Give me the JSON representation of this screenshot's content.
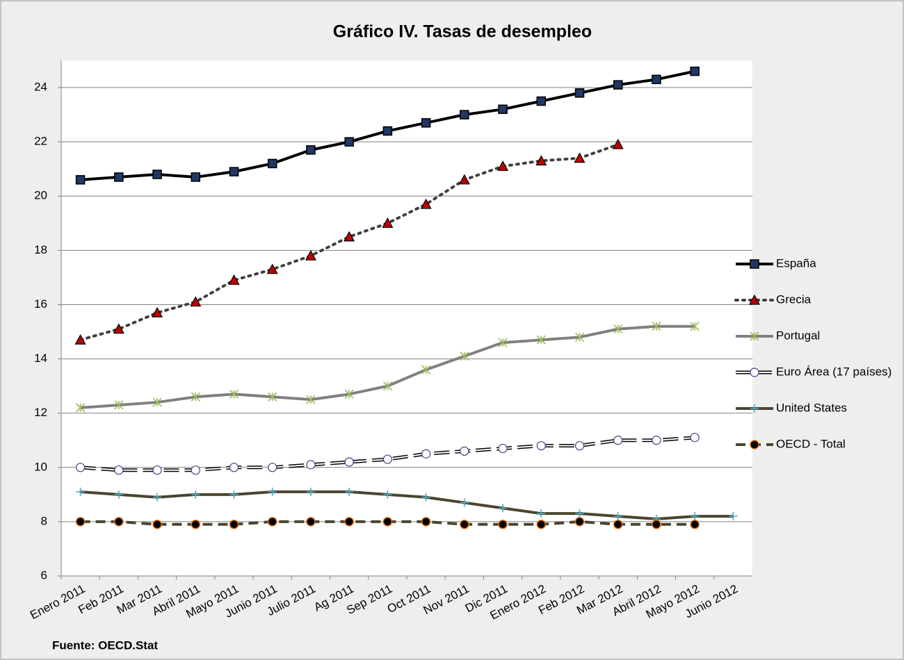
{
  "chart_data": {
    "type": "line",
    "title": "Gráfico IV. Tasas de desempleo",
    "source": "Fuente: OECD.Stat",
    "categories": [
      "Enero 2011",
      "Feb 2011",
      "Mar 2011",
      "Abril 2011",
      "Mayo 2011",
      "Junio 2011",
      "Julio 2011",
      "Ag 2011",
      "Sep 2011",
      "Oct 2011",
      "Nov 2011",
      "Dic 2011",
      "Enero 2012",
      "Feb 2012",
      "Mar 2012",
      "Abril 2012",
      "Mayo 2012",
      "Junio 2012"
    ],
    "series": [
      {
        "name": "España",
        "color": "#000000",
        "marker": "square",
        "marker_color": "#1f3864",
        "dash": "solid",
        "width": 4,
        "values": [
          20.6,
          20.7,
          20.8,
          20.7,
          20.9,
          21.2,
          21.7,
          22.0,
          22.4,
          22.7,
          23.0,
          23.2,
          23.5,
          23.8,
          24.1,
          24.3,
          24.6,
          null
        ]
      },
      {
        "name": "Grecia",
        "color": "#404040",
        "marker": "triangle",
        "marker_color": "#c00000",
        "dash": "dot",
        "width": 4,
        "values": [
          14.7,
          15.1,
          15.7,
          16.1,
          16.9,
          17.3,
          17.8,
          18.5,
          19.0,
          19.7,
          20.6,
          21.1,
          21.3,
          21.4,
          21.9,
          null,
          null,
          null
        ]
      },
      {
        "name": "Portugal",
        "color": "#808080",
        "marker": "star",
        "marker_color": "#9bbb59",
        "dash": "solid",
        "width": 4,
        "values": [
          12.2,
          12.3,
          12.4,
          12.6,
          12.7,
          12.6,
          12.5,
          12.7,
          13.0,
          13.6,
          14.1,
          14.6,
          14.7,
          14.8,
          15.1,
          15.2,
          15.2,
          null
        ]
      },
      {
        "name": "Euro Área (17 países)",
        "color": "#000000",
        "marker": "circle-open",
        "marker_color": "#4b3b8c",
        "dash": "double",
        "width": 4,
        "values": [
          10.0,
          9.9,
          9.9,
          9.9,
          10.0,
          10.0,
          10.1,
          10.2,
          10.3,
          10.5,
          10.6,
          10.7,
          10.8,
          10.8,
          11.0,
          11.0,
          11.1,
          null
        ]
      },
      {
        "name": "United States",
        "color": "#4a4530",
        "marker": "plus",
        "marker_color": "#4bacc6",
        "dash": "solid",
        "width": 4,
        "values": [
          9.1,
          9.0,
          8.9,
          9.0,
          9.0,
          9.1,
          9.1,
          9.1,
          9.0,
          8.9,
          8.7,
          8.5,
          8.3,
          8.3,
          8.2,
          8.1,
          8.2,
          8.2
        ]
      },
      {
        "name": "OECD - Total",
        "color": "#4a4530",
        "marker": "circle",
        "marker_color": "#000000",
        "dash": "dash",
        "width": 4,
        "values": [
          8.0,
          8.0,
          7.9,
          7.9,
          7.9,
          8.0,
          8.0,
          8.0,
          8.0,
          8.0,
          7.9,
          7.9,
          7.9,
          8.0,
          7.9,
          7.9,
          7.9,
          null
        ]
      }
    ],
    "ylim": [
      6,
      25
    ],
    "yticks": [
      6,
      8,
      10,
      12,
      14,
      16,
      18,
      20,
      22,
      24
    ],
    "grid": true,
    "legend": "right"
  }
}
